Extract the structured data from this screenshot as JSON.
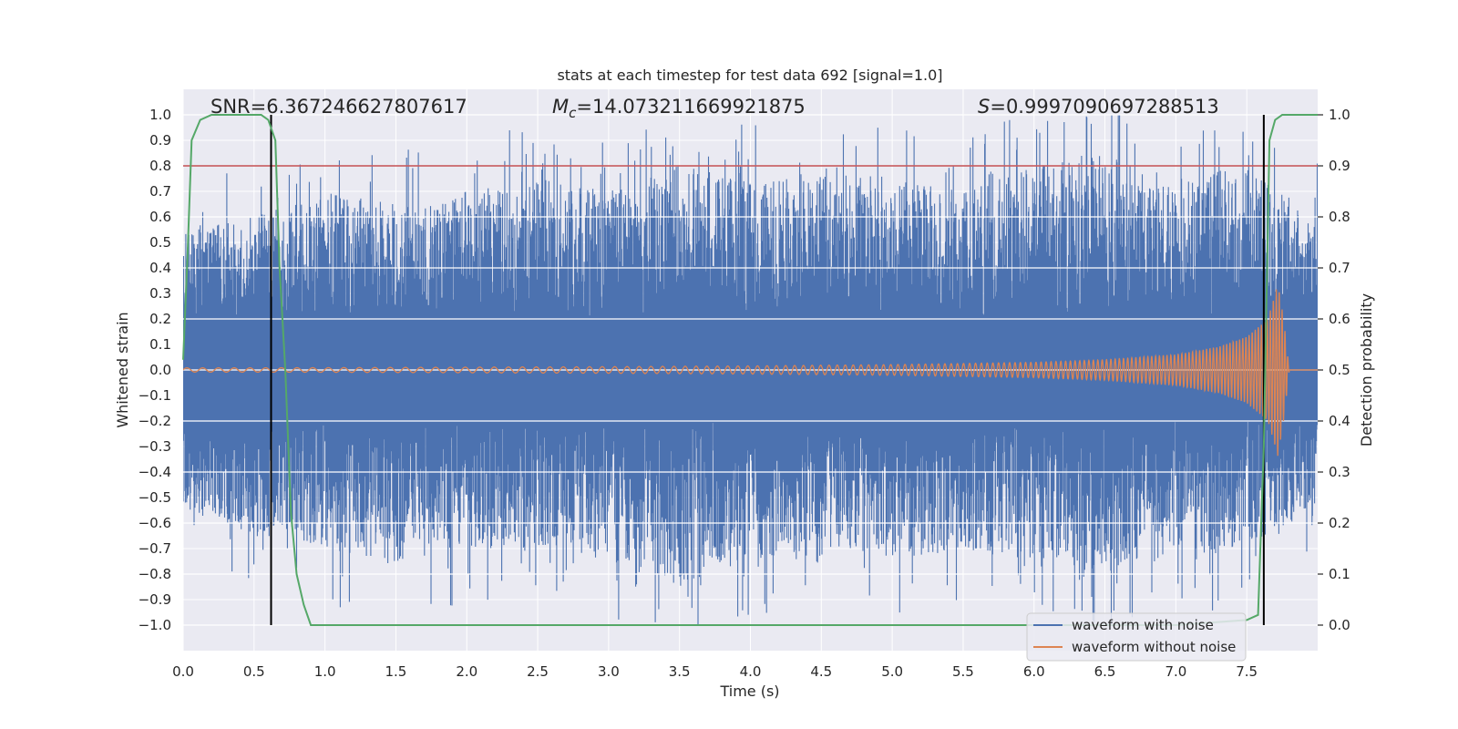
{
  "chart_data": {
    "type": "line",
    "title": "stats at each timestep for test data 692 [signal=1.0]",
    "xlabel": "Time (s)",
    "ylabel": "Whitened strain",
    "ylabel_right": "Detection probability",
    "xlim": [
      0.0,
      8.0
    ],
    "ylim": [
      -1.1,
      1.1
    ],
    "ylim_right": [
      -0.05,
      1.05
    ],
    "xticks": [
      "0.0",
      "0.5",
      "1.0",
      "1.5",
      "2.0",
      "2.5",
      "3.0",
      "3.5",
      "4.0",
      "4.5",
      "5.0",
      "5.5",
      "6.0",
      "6.5",
      "7.0",
      "7.5"
    ],
    "yticks": [
      "1.0",
      "0.9",
      "0.8",
      "0.7",
      "0.6",
      "0.5",
      "0.4",
      "0.3",
      "0.2",
      "0.1",
      "0.0",
      "−0.1",
      "−0.2",
      "−0.3",
      "−0.4",
      "−0.5",
      "−0.6",
      "−0.7",
      "−0.8",
      "−0.9",
      "−1.0"
    ],
    "yticks_right": [
      "1.0",
      "0.9",
      "0.8",
      "0.7",
      "0.6",
      "0.5",
      "0.4",
      "0.3",
      "0.2",
      "0.1",
      "0.0"
    ],
    "annotations": {
      "snr": "SNR=6.367246627807617",
      "mc_symbol": "M",
      "mc_subscript": "c",
      "mc_value": "=14.073211669921875",
      "s_symbol": "S",
      "s_value": "=0.9997090697288513"
    },
    "threshold": {
      "y": 0.8,
      "axis": "left"
    },
    "vlines": [
      0.62,
      7.62
    ],
    "legend": {
      "position": "lower-right",
      "entries": [
        "waveform with noise",
        "waveform without noise"
      ]
    },
    "series": [
      {
        "name": "waveform with noise",
        "color": "#4c72b0",
        "axis": "left",
        "description": "dense whitened noise with positive and negative spikes",
        "envelope": {
          "x": [
            0.0,
            0.5,
            1.0,
            1.5,
            2.0,
            2.5,
            3.0,
            3.5,
            4.0,
            4.5,
            5.0,
            5.5,
            6.0,
            6.5,
            7.0,
            7.5,
            8.0
          ],
          "upper": [
            0.55,
            0.6,
            0.7,
            0.65,
            0.7,
            0.75,
            0.7,
            0.8,
            0.75,
            0.8,
            0.75,
            0.7,
            0.8,
            0.85,
            0.75,
            0.8,
            0.6
          ],
          "lower": [
            -0.55,
            -0.65,
            -0.7,
            -0.75,
            -0.7,
            -0.7,
            -0.75,
            -0.85,
            -0.75,
            -0.7,
            -0.75,
            -0.7,
            -0.75,
            -0.8,
            -0.75,
            -0.7,
            -0.55
          ]
        }
      },
      {
        "name": "waveform without noise",
        "color": "#dd8452",
        "axis": "left",
        "description": "chirp signal whose amplitude grows toward merger near 7.75 s",
        "envelope": {
          "x": [
            0.0,
            1.0,
            2.0,
            3.0,
            4.0,
            5.0,
            6.0,
            6.5,
            7.0,
            7.3,
            7.5,
            7.65,
            7.72,
            7.76,
            7.8,
            8.0
          ],
          "amplitude": [
            0.008,
            0.009,
            0.011,
            0.013,
            0.016,
            0.021,
            0.03,
            0.04,
            0.06,
            0.09,
            0.13,
            0.2,
            0.34,
            0.2,
            0.0,
            0.0
          ]
        }
      },
      {
        "name": "detection probability",
        "color": "#55a868",
        "axis": "right",
        "x": [
          0.0,
          0.03,
          0.06,
          0.12,
          0.2,
          0.3,
          0.4,
          0.5,
          0.55,
          0.6,
          0.65,
          0.68,
          0.72,
          0.76,
          0.8,
          0.85,
          0.9,
          1.2,
          2.0,
          3.0,
          4.0,
          5.0,
          6.0,
          7.0,
          7.5,
          7.58,
          7.62,
          7.66,
          7.7,
          7.75,
          7.85,
          8.0
        ],
        "y": [
          0.52,
          0.72,
          0.95,
          0.99,
          1.0,
          1.0,
          1.0,
          1.0,
          1.0,
          0.99,
          0.95,
          0.7,
          0.5,
          0.22,
          0.1,
          0.04,
          0.0,
          0.0,
          0.0,
          0.0,
          0.0,
          0.0,
          0.0,
          0.0,
          0.01,
          0.02,
          0.35,
          0.95,
          0.99,
          1.0,
          1.0,
          1.0
        ]
      }
    ]
  }
}
